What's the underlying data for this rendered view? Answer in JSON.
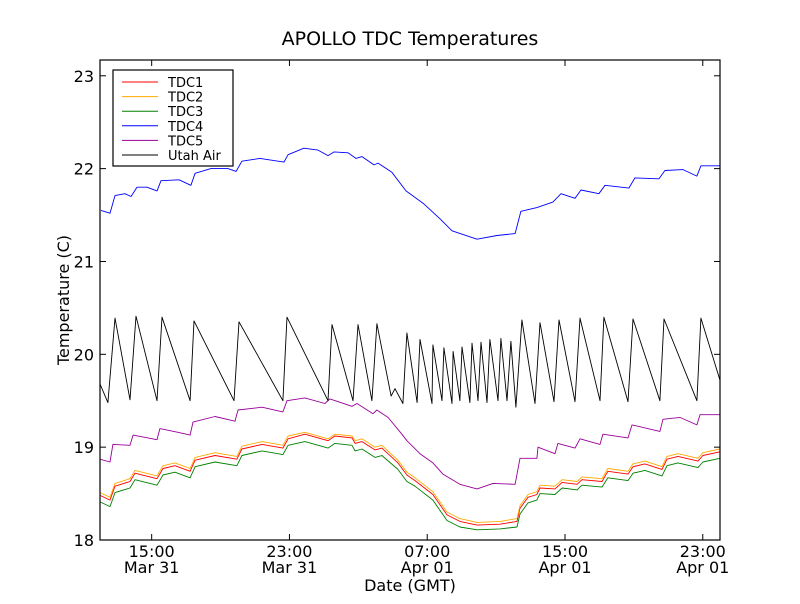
{
  "chart_data": {
    "type": "line",
    "title": "APOLLO TDC Temperatures",
    "xlabel": "Date (GMT)",
    "ylabel": "Temperature (C)",
    "x_units": "hours since Mar 31 00:00 GMT",
    "xlim": [
      12.0,
      48.0
    ],
    "ylim": [
      18,
      23.17
    ],
    "grid": false,
    "legend_position": "top-left",
    "yticks": [
      18,
      19,
      20,
      21,
      22,
      23
    ],
    "ytick_labels": [
      "18",
      "19",
      "20",
      "21",
      "22",
      "23"
    ],
    "xticks": [
      15,
      23,
      31,
      39,
      47
    ],
    "xtick_labels": [
      {
        "time": "15:00",
        "date": "Mar 31"
      },
      {
        "time": "23:00",
        "date": "Mar 31"
      },
      {
        "time": "07:00",
        "date": "Apr 01"
      },
      {
        "time": "15:00",
        "date": "Apr 01"
      },
      {
        "time": "23:00",
        "date": "Apr 01"
      }
    ],
    "series": [
      {
        "name": "TDC1",
        "color": "#ff0000",
        "x": [
          12.0,
          12.58,
          12.87,
          13.74,
          14.03,
          15.31,
          15.66,
          16.35,
          17.23,
          17.52,
          18.68,
          19.95,
          20.24,
          21.41,
          22.62,
          22.92,
          23.9,
          25.24,
          25.64,
          26.63,
          26.81,
          27.21,
          27.97,
          28.37,
          29.3,
          29.82,
          30.29,
          31.33,
          32.15,
          32.9,
          33.89,
          35.22,
          36.21,
          36.39,
          36.85,
          37.37,
          37.55,
          38.42,
          38.83,
          39.7,
          39.98,
          41.15,
          41.49,
          42.66,
          42.95,
          43.64,
          44.63,
          44.92,
          45.56,
          46.72,
          47.01,
          48.0
        ],
        "y": [
          18.48,
          18.43,
          18.58,
          18.63,
          18.72,
          18.66,
          18.77,
          18.8,
          18.74,
          18.86,
          18.91,
          18.87,
          18.98,
          19.03,
          18.99,
          19.09,
          19.14,
          19.07,
          19.12,
          19.1,
          19.04,
          19.06,
          18.97,
          18.99,
          18.83,
          18.7,
          18.64,
          18.49,
          18.27,
          18.2,
          18.16,
          18.17,
          18.2,
          18.34,
          18.46,
          18.49,
          18.56,
          18.55,
          18.62,
          18.6,
          18.65,
          18.63,
          18.74,
          18.71,
          18.79,
          18.82,
          18.76,
          18.87,
          18.9,
          18.85,
          18.91,
          18.95
        ]
      },
      {
        "name": "TDC2",
        "color": "#ffaa00",
        "x": [
          12.0,
          12.58,
          12.87,
          13.74,
          14.03,
          15.31,
          15.66,
          16.35,
          17.23,
          17.52,
          18.68,
          19.95,
          20.24,
          21.41,
          22.62,
          22.92,
          23.9,
          25.24,
          25.64,
          26.63,
          26.81,
          27.21,
          27.97,
          28.37,
          29.3,
          29.82,
          30.29,
          31.33,
          32.15,
          32.9,
          33.89,
          35.22,
          36.21,
          36.39,
          36.85,
          37.37,
          37.55,
          38.42,
          38.83,
          39.7,
          39.98,
          41.15,
          41.49,
          42.66,
          42.95,
          43.64,
          44.63,
          44.92,
          45.56,
          46.72,
          47.01,
          48.0
        ],
        "y": [
          18.51,
          18.46,
          18.61,
          18.66,
          18.75,
          18.69,
          18.8,
          18.83,
          18.77,
          18.89,
          18.94,
          18.9,
          19.01,
          19.06,
          19.02,
          19.12,
          19.16,
          19.09,
          19.14,
          19.12,
          19.07,
          19.09,
          19.0,
          19.02,
          18.86,
          18.73,
          18.67,
          18.52,
          18.3,
          18.23,
          18.19,
          18.2,
          18.23,
          18.37,
          18.49,
          18.52,
          18.59,
          18.58,
          18.65,
          18.63,
          18.68,
          18.66,
          18.77,
          18.74,
          18.82,
          18.85,
          18.79,
          18.9,
          18.93,
          18.88,
          18.94,
          18.98
        ]
      },
      {
        "name": "TDC3",
        "color": "#008000",
        "x": [
          12.0,
          12.58,
          12.87,
          13.74,
          14.03,
          15.31,
          15.66,
          16.35,
          17.23,
          17.52,
          18.68,
          19.95,
          20.24,
          21.41,
          22.62,
          22.92,
          23.9,
          25.24,
          25.64,
          26.63,
          26.81,
          27.21,
          27.97,
          28.37,
          29.3,
          29.82,
          30.29,
          31.33,
          32.15,
          32.9,
          33.89,
          35.22,
          36.21,
          36.39,
          36.85,
          37.37,
          37.55,
          38.42,
          38.83,
          39.7,
          39.98,
          41.15,
          41.49,
          42.66,
          42.95,
          43.64,
          44.63,
          44.92,
          45.56,
          46.72,
          47.01,
          48.0
        ],
        "y": [
          18.41,
          18.36,
          18.51,
          18.56,
          18.65,
          18.59,
          18.7,
          18.73,
          18.67,
          18.79,
          18.84,
          18.8,
          18.91,
          18.96,
          18.92,
          19.02,
          19.06,
          18.99,
          19.04,
          19.02,
          18.96,
          18.98,
          18.89,
          18.91,
          18.76,
          18.63,
          18.58,
          18.43,
          18.21,
          18.14,
          18.11,
          18.12,
          18.14,
          18.28,
          18.4,
          18.43,
          18.5,
          18.49,
          18.56,
          18.54,
          18.59,
          18.57,
          18.67,
          18.64,
          18.72,
          18.75,
          18.69,
          18.8,
          18.83,
          18.78,
          18.84,
          18.88
        ]
      },
      {
        "name": "TDC4",
        "color": "#0000ff",
        "x": [
          12.06,
          12.58,
          12.87,
          13.45,
          13.8,
          14.15,
          14.73,
          15.31,
          15.54,
          16.59,
          17.28,
          17.52,
          18.44,
          19.43,
          19.9,
          20.24,
          21.29,
          22.68,
          22.92,
          23.84,
          24.66,
          25.24,
          25.59,
          26.4,
          26.86,
          27.21,
          27.91,
          28.14,
          28.95,
          29.77,
          30.81,
          31.74,
          32.44,
          33.89,
          35.05,
          36.1,
          36.44,
          37.37,
          38.3,
          38.77,
          39.58,
          39.93,
          40.97,
          41.32,
          42.71,
          43.06,
          44.46,
          44.8,
          45.85,
          46.66,
          46.89,
          48.0
        ],
        "y": [
          21.55,
          21.52,
          21.71,
          21.73,
          21.7,
          21.8,
          21.8,
          21.76,
          21.87,
          21.88,
          21.82,
          21.95,
          22.0,
          22.0,
          21.97,
          22.08,
          22.11,
          22.07,
          22.15,
          22.22,
          22.2,
          22.14,
          22.18,
          22.17,
          22.11,
          22.13,
          22.04,
          22.06,
          21.96,
          21.76,
          21.62,
          21.46,
          21.33,
          21.24,
          21.28,
          21.3,
          21.54,
          21.58,
          21.64,
          21.73,
          21.68,
          21.77,
          21.73,
          21.82,
          21.79,
          21.9,
          21.89,
          21.98,
          21.99,
          21.92,
          22.03,
          22.03
        ]
      },
      {
        "name": "TDC5",
        "color": "#990099",
        "x": [
          12.0,
          12.58,
          12.75,
          13.74,
          13.92,
          15.31,
          15.48,
          16.53,
          17.23,
          17.4,
          18.68,
          19.84,
          20.01,
          21.41,
          22.62,
          22.86,
          23.9,
          25.06,
          25.35,
          26.63,
          26.92,
          27.85,
          28.08,
          28.72,
          29.53,
          29.82,
          30.58,
          31.33,
          31.91,
          32.9,
          33.89,
          34.82,
          36.1,
          36.39,
          37.37,
          37.43,
          38.42,
          38.59,
          39.58,
          39.87,
          41.03,
          41.2,
          42.66,
          42.89,
          44.51,
          44.69,
          45.67,
          46.66,
          46.84,
          48.0
        ],
        "y": [
          18.87,
          18.84,
          19.03,
          19.02,
          19.13,
          19.08,
          19.2,
          19.16,
          19.13,
          19.27,
          19.33,
          19.28,
          19.4,
          19.43,
          19.38,
          19.5,
          19.53,
          19.47,
          19.52,
          19.44,
          19.47,
          19.36,
          19.4,
          19.32,
          19.14,
          19.07,
          18.93,
          18.83,
          18.71,
          18.6,
          18.55,
          18.61,
          18.6,
          18.88,
          18.88,
          19.0,
          18.93,
          19.04,
          18.99,
          19.09,
          19.03,
          19.14,
          19.1,
          19.24,
          19.17,
          19.3,
          19.32,
          19.24,
          19.35,
          19.35
        ]
      },
      {
        "name": "Utah Air",
        "color": "#000000",
        "x": [
          12.0,
          12.46,
          12.87,
          13.74,
          14.09,
          15.31,
          15.6,
          17.23,
          17.46,
          19.78,
          20.07,
          22.62,
          22.86,
          25.24,
          25.47,
          26.69,
          26.98,
          27.79,
          28.08,
          28.9,
          29.13,
          29.59,
          29.82,
          30.41,
          30.58,
          31.28,
          31.33,
          31.86,
          31.97,
          32.44,
          32.5,
          32.9,
          33.02,
          33.48,
          33.6,
          33.95,
          34.12,
          34.47,
          34.64,
          35.11,
          35.28,
          35.63,
          35.86,
          36.15,
          36.5,
          37.26,
          37.55,
          38.36,
          38.65,
          39.58,
          39.87,
          41.03,
          41.26,
          42.66,
          42.95,
          44.51,
          44.75,
          46.66,
          46.89,
          48.0
        ],
        "y": [
          19.68,
          19.48,
          20.39,
          19.51,
          20.41,
          19.5,
          20.4,
          19.5,
          20.36,
          19.5,
          20.35,
          19.5,
          20.4,
          19.5,
          20.32,
          19.5,
          20.32,
          19.5,
          20.33,
          19.55,
          19.63,
          19.47,
          20.23,
          19.48,
          20.16,
          19.47,
          20.1,
          19.5,
          20.07,
          19.47,
          20.03,
          19.5,
          20.08,
          19.48,
          20.12,
          19.5,
          20.13,
          19.48,
          20.16,
          19.5,
          20.17,
          19.5,
          20.14,
          19.43,
          20.37,
          19.47,
          20.34,
          19.49,
          20.37,
          19.49,
          20.39,
          19.5,
          20.4,
          19.49,
          20.38,
          19.5,
          20.38,
          19.5,
          20.39,
          19.72
        ]
      }
    ]
  }
}
